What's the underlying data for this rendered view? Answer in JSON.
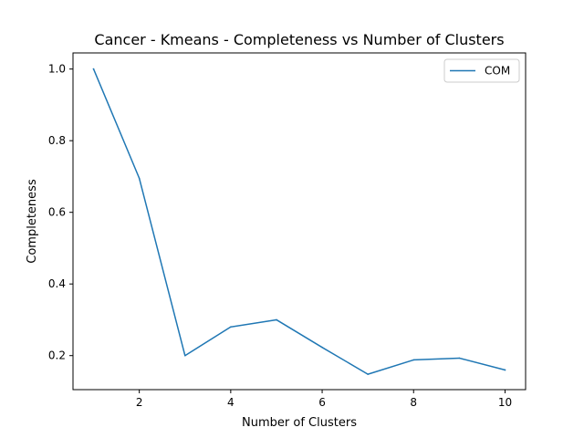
{
  "chart_data": {
    "type": "line",
    "title": "Cancer - Kmeans - Completeness vs Number of Clusters",
    "xlabel": "Number of Clusters",
    "ylabel": "Completeness",
    "xlim": [
      0.55,
      10.45
    ],
    "ylim": [
      0.105,
      1.045
    ],
    "xticks": [
      2,
      4,
      6,
      8,
      10
    ],
    "yticks": [
      0.2,
      0.4,
      0.6,
      0.8,
      1.0
    ],
    "xtick_labels": [
      "2",
      "4",
      "6",
      "8",
      "10"
    ],
    "ytick_labels": [
      "0.2",
      "0.4",
      "0.6",
      "0.8",
      "1.0"
    ],
    "grid": false,
    "legend_position": "top-right",
    "series": [
      {
        "name": "COM",
        "color": "#1f77b4",
        "x": [
          1,
          2,
          3,
          4,
          5,
          6,
          7,
          8,
          9,
          10
        ],
        "y": [
          1.0,
          0.695,
          0.2,
          0.28,
          0.3,
          0.223,
          0.148,
          0.188,
          0.193,
          0.16
        ]
      }
    ]
  }
}
